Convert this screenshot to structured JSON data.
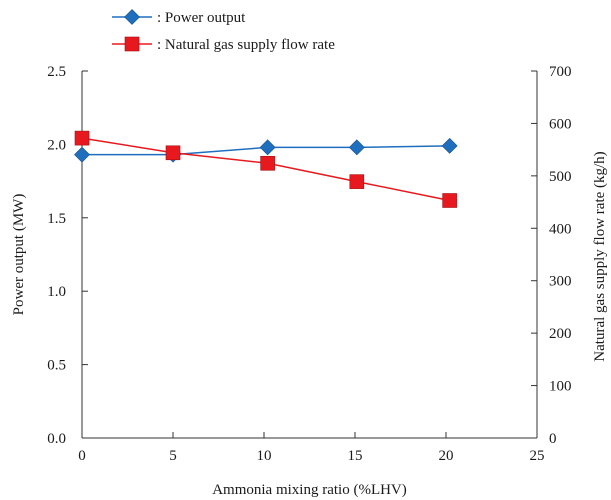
{
  "chart_data": {
    "type": "line",
    "title": "",
    "xlabel": "Ammonia mixing ratio (%LHV)",
    "ylabel": "Power output (MW)",
    "ylabel_right": "Natural gas supply flow rate (kg/h)",
    "xlim": [
      0,
      25
    ],
    "ylim": [
      0,
      2.5
    ],
    "ylim_right": [
      0,
      700
    ],
    "x_ticks": [
      "0",
      "5",
      "10",
      "15",
      "20",
      "25"
    ],
    "y_ticks": [
      "0.0",
      "0.5",
      "1.0",
      "1.5",
      "2.0",
      "2.5"
    ],
    "y_right_ticks": [
      "0",
      "100",
      "200",
      "300",
      "400",
      "500",
      "600",
      "700"
    ],
    "grid": false,
    "legend_position": "top-left, above plot",
    "series": [
      {
        "name": ": Power output",
        "axis": "left",
        "color": "#1f6fbf",
        "marker": "diamond",
        "x": [
          0,
          5,
          10.2,
          15.1,
          20.2
        ],
        "values": [
          1.93,
          1.93,
          1.98,
          1.98,
          1.99
        ]
      },
      {
        "name": ": Natural gas supply flow rate",
        "axis": "right",
        "color": "#e8191e",
        "marker": "square",
        "x": [
          0,
          5,
          10.2,
          15.1,
          20.2
        ],
        "values": [
          572,
          544,
          524,
          489,
          453
        ]
      }
    ]
  }
}
